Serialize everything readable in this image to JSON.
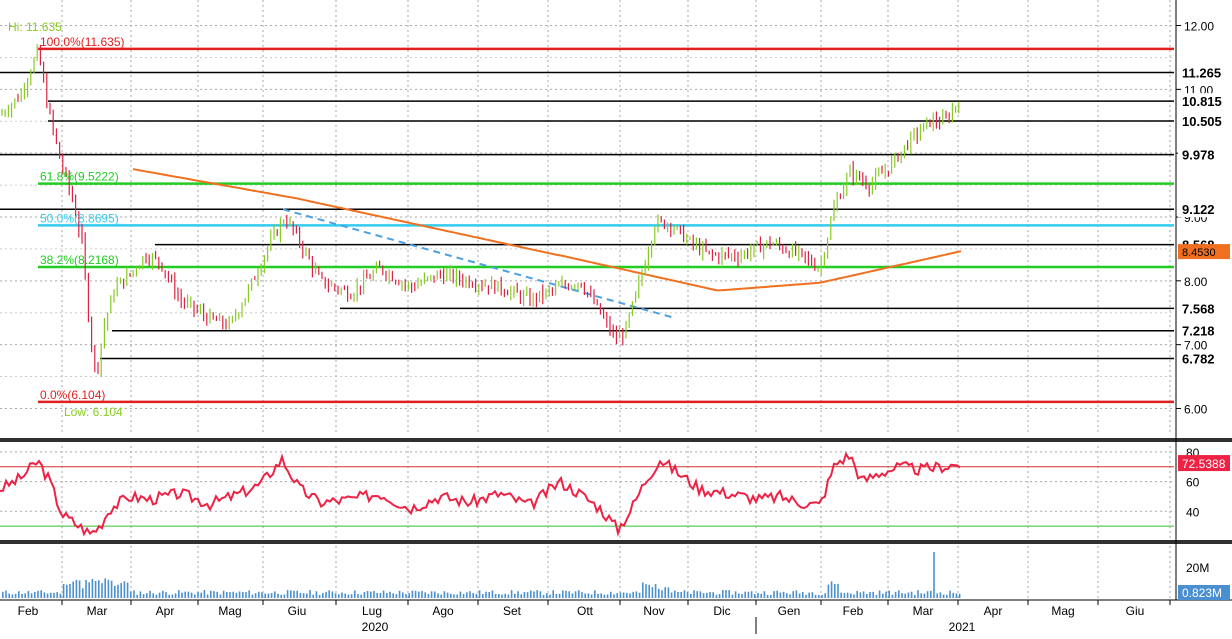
{
  "chart_data": [
    {
      "type": "candlestick",
      "panel": "price",
      "y_ticks": [
        6.0,
        7.0,
        8.0,
        9.0,
        10.0,
        11.0,
        12.0
      ],
      "y_range": [
        5.6,
        12.4
      ],
      "x_month_labels": [
        "Feb",
        "Mar",
        "Apr",
        "Mag",
        "Giu",
        "Lug",
        "Ago",
        "Set",
        "Ott",
        "Nov",
        "Dic",
        "Gen",
        "Feb",
        "Mar",
        "Apr",
        "Mag",
        "Giu"
      ],
      "x_year_labels": [
        "2020",
        "2021"
      ],
      "hi_label": "Hi: 11.635",
      "low_label": "Low: 6.104",
      "fibonacci_levels": [
        {
          "label": "100.0%(11.635)",
          "value": 11.635,
          "color": "#e02020"
        },
        {
          "label": "61.8%(9.5222)",
          "value": 9.5222,
          "color": "#22cc22"
        },
        {
          "label": "50.0%(8.8695)",
          "value": 8.8695,
          "color": "#33ccee"
        },
        {
          "label": "38.2%(8.2168)",
          "value": 8.2168,
          "color": "#22cc22"
        },
        {
          "label": "0.0%(6.104)",
          "value": 6.104,
          "color": "#e02020"
        }
      ],
      "horizontal_levels": [
        11.265,
        10.815,
        10.505,
        9.978,
        9.122,
        8.568,
        7.568,
        7.218,
        6.782
      ],
      "moving_average_last": "8.4530",
      "moving_average_color": "#f07020",
      "trendline_color": "#4aa0e0",
      "up_color": "#88cc22",
      "down_color": "#dd2244"
    },
    {
      "type": "line",
      "panel": "rsi",
      "y_ticks": [
        40,
        60,
        80
      ],
      "y_range": [
        22,
        84
      ],
      "overbought": 70,
      "oversold": 30,
      "last_value": "72.5388",
      "line_color": "#ee2244"
    },
    {
      "type": "bar",
      "panel": "volume",
      "y_ticks_label": "20M",
      "last_value": "0.823M",
      "bar_color": "#4a90d0"
    }
  ]
}
